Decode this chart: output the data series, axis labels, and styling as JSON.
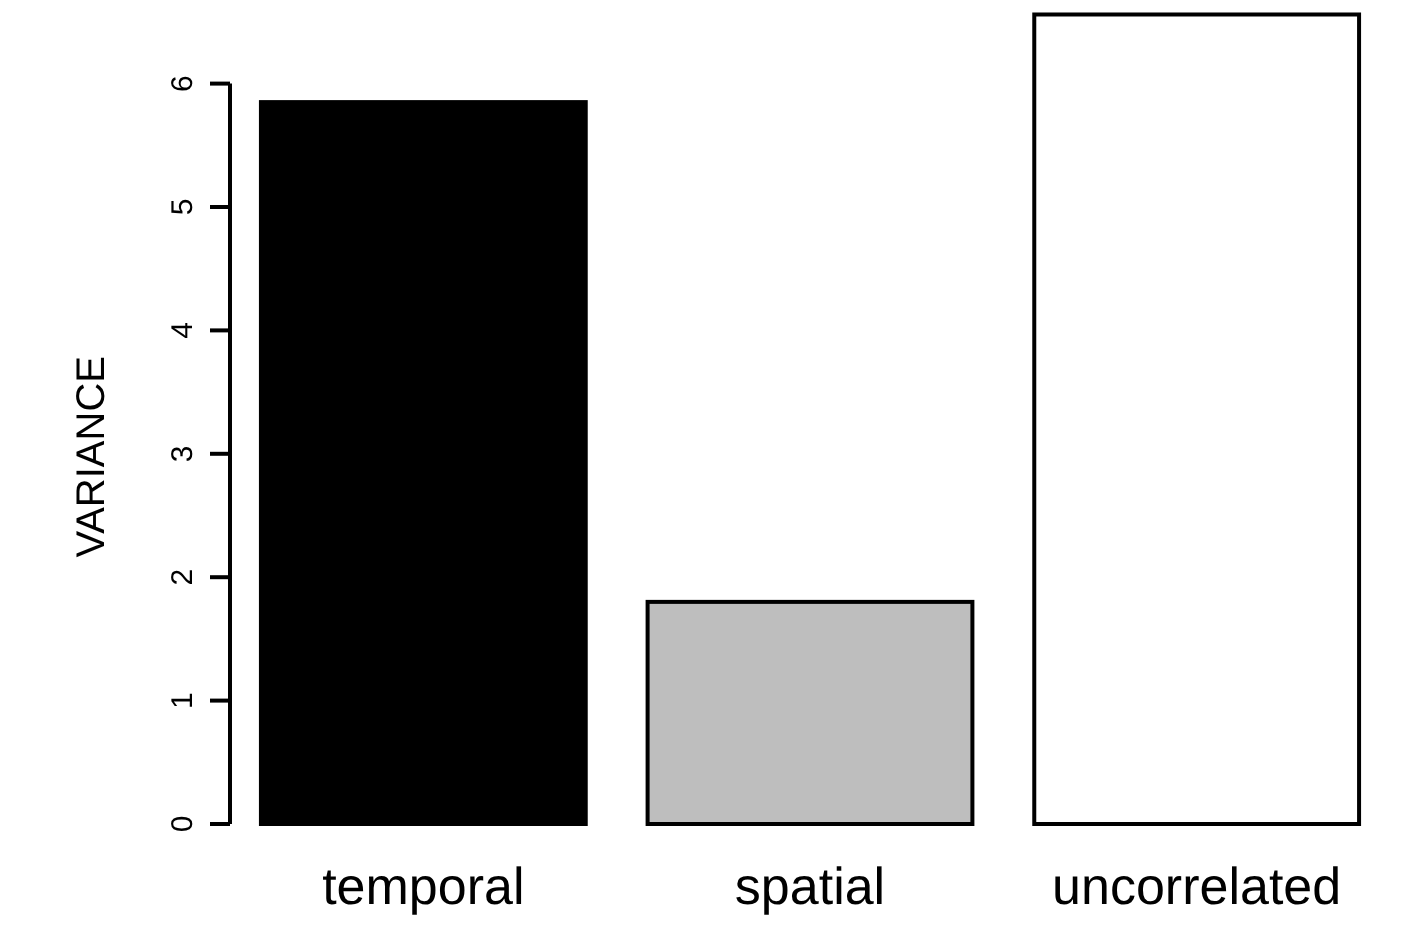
{
  "chart_data": {
    "type": "bar",
    "ylabel": "VARIANCE",
    "categories": [
      "temporal",
      "spatial",
      "uncorrelated"
    ],
    "values": [
      5.85,
      1.8,
      6.56
    ],
    "colors": [
      "#000000",
      "#bebebe",
      "#ffffff"
    ],
    "ylim": [
      0,
      6.6
    ],
    "yticks": [
      0,
      1,
      2,
      3,
      4,
      5,
      6
    ],
    "grid": false
  }
}
